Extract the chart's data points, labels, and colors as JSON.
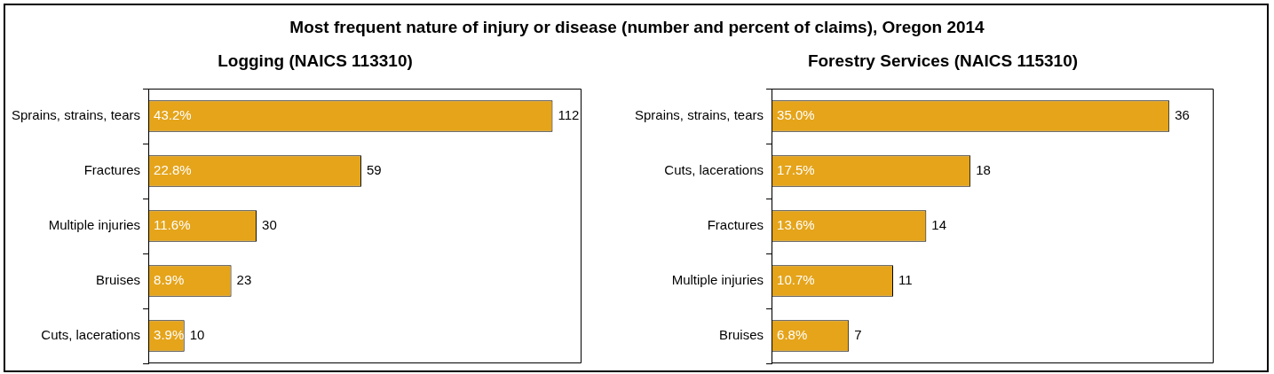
{
  "chart_data": [
    {
      "type": "bar",
      "orientation": "horizontal",
      "title": "Most frequent nature of injury or disease (number and percent of claims), Oregon 2014",
      "subtitle": "Logging (NAICS 113310)",
      "categories": [
        "Sprains, strains, tears",
        "Fractures",
        "Multiple injuries",
        "Bruises",
        "Cuts, lacerations"
      ],
      "values": [
        112,
        59,
        30,
        23,
        10
      ],
      "data_labels": true,
      "color": "#e5a41a",
      "annotations": [
        "43.2%",
        "22.8%",
        "11.6%",
        "8.9%",
        "3.9%"
      ]
    },
    {
      "type": "bar",
      "orientation": "horizontal",
      "subtitle": "Forestry Services (NAICS 115310)",
      "categories": [
        "Sprains, strains, tears",
        "Cuts, lacerations",
        "Fractures",
        "Multiple injuries",
        "Bruises"
      ],
      "values": [
        36,
        18,
        14,
        11,
        7
      ],
      "data_labels": true,
      "color": "#e5a41a",
      "annotations": [
        "35.0%",
        "17.5%",
        "13.6%",
        "10.7%",
        "6.8%"
      ]
    }
  ]
}
